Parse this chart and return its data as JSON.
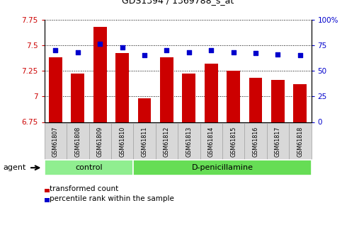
{
  "title": "GDS1394 / 1369788_s_at",
  "samples": [
    "GSM61807",
    "GSM61808",
    "GSM61809",
    "GSM61810",
    "GSM61811",
    "GSM61812",
    "GSM61813",
    "GSM61814",
    "GSM61815",
    "GSM61816",
    "GSM61817",
    "GSM61818"
  ],
  "transformed_counts": [
    7.38,
    7.22,
    7.68,
    7.42,
    6.98,
    7.38,
    7.22,
    7.32,
    7.25,
    7.18,
    7.16,
    7.12
  ],
  "percentile_ranks": [
    70,
    68,
    76,
    73,
    65,
    70,
    68,
    70,
    68,
    67,
    66,
    65
  ],
  "groups": [
    {
      "label": "control",
      "start": 0,
      "end": 4,
      "color": "#90EE90"
    },
    {
      "label": "D-penicillamine",
      "start": 4,
      "end": 12,
      "color": "#66DD55"
    }
  ],
  "bar_color": "#CC0000",
  "dot_color": "#0000CC",
  "ylim_left": [
    6.75,
    7.75
  ],
  "ylim_right": [
    0,
    100
  ],
  "yticks_left": [
    6.75,
    7.0,
    7.25,
    7.5,
    7.75
  ],
  "yticks_right": [
    0,
    25,
    50,
    75,
    100
  ],
  "ytick_labels_left": [
    "6.75",
    "7",
    "7.25",
    "7.5",
    "7.75"
  ],
  "ytick_labels_right": [
    "0",
    "25",
    "50",
    "75",
    "100%"
  ],
  "bar_width": 0.6,
  "left_axis_color": "#CC0000",
  "right_axis_color": "#0000CC",
  "agent_label": "agent",
  "legend_bar_label": "transformed count",
  "legend_dot_label": "percentile rank within the sample",
  "n_control": 4,
  "n_total": 12
}
